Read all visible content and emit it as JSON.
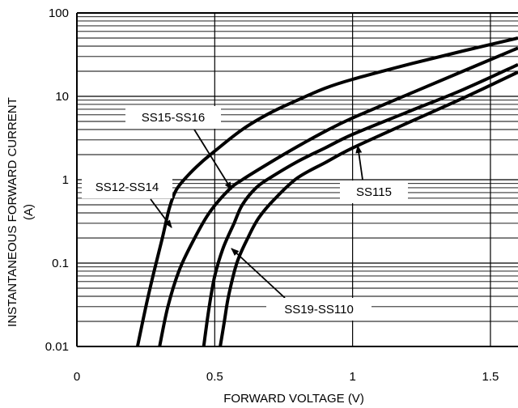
{
  "chart_data": {
    "type": "line",
    "title": "",
    "xlabel": "FORWARD VOLTAGE (V)",
    "ylabel_line1": "INSTANTANEOUS FORWARD CURRENT",
    "ylabel_line2": "(A)",
    "xscale": "linear",
    "yscale": "log",
    "xlim": [
      0,
      1.6
    ],
    "ylim": [
      0.01,
      100
    ],
    "xticks": [
      {
        "value": 0,
        "label": "0"
      },
      {
        "value": 0.5,
        "label": "0.5"
      },
      {
        "value": 1,
        "label": "1"
      },
      {
        "value": 1.5,
        "label": "1.5"
      }
    ],
    "yticks": [
      {
        "value": 0.01,
        "label": "0.01"
      },
      {
        "value": 0.1,
        "label": "0.1"
      },
      {
        "value": 1,
        "label": "1"
      },
      {
        "value": 10,
        "label": "10"
      },
      {
        "value": 100,
        "label": "100"
      }
    ],
    "grid": true,
    "series": [
      {
        "name": "SS12-SS14",
        "points": [
          [
            0.22,
            0.01
          ],
          [
            0.25,
            0.03
          ],
          [
            0.28,
            0.08
          ],
          [
            0.31,
            0.2
          ],
          [
            0.335,
            0.45
          ],
          [
            0.36,
            0.75
          ],
          [
            0.4,
            1.1
          ],
          [
            0.45,
            1.6
          ],
          [
            0.5,
            2.2
          ],
          [
            0.6,
            4.0
          ],
          [
            0.7,
            6.3
          ],
          [
            0.8,
            9.0
          ],
          [
            0.9,
            12.5
          ],
          [
            1.0,
            16.0
          ],
          [
            1.2,
            24.0
          ],
          [
            1.4,
            35.0
          ],
          [
            1.6,
            50.0
          ]
        ]
      },
      {
        "name": "SS15-SS16",
        "points": [
          [
            0.3,
            0.01
          ],
          [
            0.33,
            0.03
          ],
          [
            0.37,
            0.08
          ],
          [
            0.42,
            0.18
          ],
          [
            0.48,
            0.4
          ],
          [
            0.55,
            0.75
          ],
          [
            0.6,
            1.0
          ],
          [
            0.7,
            1.6
          ],
          [
            0.8,
            2.5
          ],
          [
            0.9,
            3.8
          ],
          [
            1.0,
            5.5
          ],
          [
            1.2,
            10.5
          ],
          [
            1.4,
            20.0
          ],
          [
            1.6,
            38.0
          ]
        ]
      },
      {
        "name": "SS19-SS110",
        "points": [
          [
            0.46,
            0.01
          ],
          [
            0.48,
            0.03
          ],
          [
            0.5,
            0.07
          ],
          [
            0.53,
            0.15
          ],
          [
            0.57,
            0.3
          ],
          [
            0.6,
            0.5
          ],
          [
            0.65,
            0.8
          ],
          [
            0.7,
            1.05
          ],
          [
            0.8,
            1.65
          ],
          [
            0.9,
            2.4
          ],
          [
            1.0,
            3.5
          ],
          [
            1.2,
            6.5
          ],
          [
            1.4,
            12.0
          ],
          [
            1.6,
            24.0
          ]
        ]
      },
      {
        "name": "SS115",
        "points": [
          [
            0.52,
            0.01
          ],
          [
            0.535,
            0.02
          ],
          [
            0.55,
            0.04
          ],
          [
            0.58,
            0.1
          ],
          [
            0.62,
            0.2
          ],
          [
            0.66,
            0.35
          ],
          [
            0.72,
            0.6
          ],
          [
            0.8,
            1.05
          ],
          [
            0.9,
            1.6
          ],
          [
            1.0,
            2.4
          ],
          [
            1.2,
            4.8
          ],
          [
            1.4,
            9.5
          ],
          [
            1.6,
            19.5
          ]
        ]
      }
    ],
    "annotations": [
      {
        "text": "SS15-SS16"
      },
      {
        "text": "SS12-SS14"
      },
      {
        "text": "SS115"
      },
      {
        "text": "SS19-SS110"
      }
    ]
  }
}
